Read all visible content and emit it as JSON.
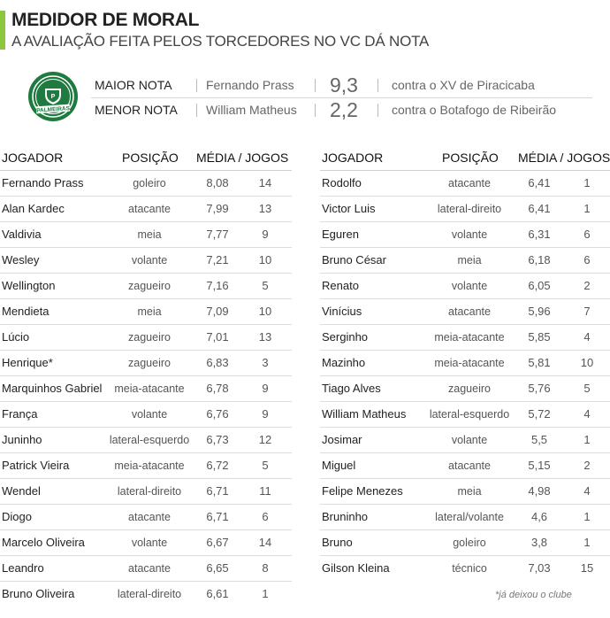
{
  "header": {
    "title": "MEDIDOR DE MORAL",
    "subtitle": "A AVALIAÇÃO FEITA PELOS TORCEDORES NO VC DÁ NOTA",
    "accent_color": "#8cc63f"
  },
  "logo": {
    "icon": "palmeiras-crest-icon",
    "text": "PALMEIRAS",
    "color": "#1f7a3f"
  },
  "summary": {
    "highest": {
      "label": "MAIOR NOTA",
      "player": "Fernando Prass",
      "score": "9,3",
      "opponent": "contra o XV de Piracicaba"
    },
    "lowest": {
      "label": "MENOR NOTA",
      "player": "William Matheus",
      "score": "2,2",
      "opponent": "contra o Botafogo de Ribeirão"
    }
  },
  "table_headers": {
    "player": "JOGADOR",
    "position": "POSIÇÃO",
    "avg_games": "MÉDIA / JOGOS"
  },
  "left_rows": [
    {
      "player": "Fernando Prass",
      "position": "goleiro",
      "avg": "8,08",
      "games": "14"
    },
    {
      "player": "Alan Kardec",
      "position": "atacante",
      "avg": "7,99",
      "games": "13"
    },
    {
      "player": "Valdivia",
      "position": "meia",
      "avg": "7,77",
      "games": "9"
    },
    {
      "player": "Wesley",
      "position": "volante",
      "avg": "7,21",
      "games": "10"
    },
    {
      "player": "Wellington",
      "position": "zagueiro",
      "avg": "7,16",
      "games": "5"
    },
    {
      "player": "Mendieta",
      "position": "meia",
      "avg": "7,09",
      "games": "10"
    },
    {
      "player": "Lúcio",
      "position": "zagueiro",
      "avg": "7,01",
      "games": "13"
    },
    {
      "player": "Henrique*",
      "position": "zagueiro",
      "avg": "6,83",
      "games": "3"
    },
    {
      "player": "Marquinhos Gabriel",
      "position": "meia-atacante",
      "avg": "6,78",
      "games": "9"
    },
    {
      "player": "França",
      "position": "volante",
      "avg": "6,76",
      "games": "9"
    },
    {
      "player": "Juninho",
      "position": "lateral-esquerdo",
      "avg": "6,73",
      "games": "12"
    },
    {
      "player": "Patrick Vieira",
      "position": "meia-atacante",
      "avg": "6,72",
      "games": "5"
    },
    {
      "player": "Wendel",
      "position": "lateral-direito",
      "avg": "6,71",
      "games": "11"
    },
    {
      "player": "Diogo",
      "position": "atacante",
      "avg": "6,71",
      "games": "6"
    },
    {
      "player": "Marcelo Oliveira",
      "position": "volante",
      "avg": "6,67",
      "games": "14"
    },
    {
      "player": "Leandro",
      "position": "atacante",
      "avg": "6,65",
      "games": "8"
    },
    {
      "player": "Bruno Oliveira",
      "position": "lateral-direito",
      "avg": "6,61",
      "games": "1"
    }
  ],
  "right_rows": [
    {
      "player": "Rodolfo",
      "position": "atacante",
      "avg": "6,41",
      "games": "1"
    },
    {
      "player": "Victor Luis",
      "position": "lateral-direito",
      "avg": "6,41",
      "games": "1"
    },
    {
      "player": "Eguren",
      "position": "volante",
      "avg": "6,31",
      "games": "6"
    },
    {
      "player": "Bruno César",
      "position": "meia",
      "avg": "6,18",
      "games": "6"
    },
    {
      "player": "Renato",
      "position": "volante",
      "avg": "6,05",
      "games": "2"
    },
    {
      "player": "Vinícius",
      "position": "atacante",
      "avg": "5,96",
      "games": "7"
    },
    {
      "player": "Serginho",
      "position": "meia-atacante",
      "avg": "5,85",
      "games": "4"
    },
    {
      "player": "Mazinho",
      "position": "meia-atacante",
      "avg": "5,81",
      "games": "10"
    },
    {
      "player": "Tiago Alves",
      "position": "zagueiro",
      "avg": "5,76",
      "games": "5"
    },
    {
      "player": "William Matheus",
      "position": "lateral-esquerdo",
      "avg": "5,72",
      "games": "4"
    },
    {
      "player": "Josimar",
      "position": "volante",
      "avg": "5,5",
      "games": "1"
    },
    {
      "player": "Miguel",
      "position": "atacante",
      "avg": "5,15",
      "games": "2"
    },
    {
      "player": "Felipe Menezes",
      "position": "meia",
      "avg": "4,98",
      "games": "4"
    },
    {
      "player": "Bruninho",
      "position": "lateral/volante",
      "avg": "4,6",
      "games": "1"
    },
    {
      "player": "Bruno",
      "position": "goleiro",
      "avg": "3,8",
      "games": "1"
    },
    {
      "player": "Gilson Kleina",
      "position": "técnico",
      "avg": "7,03",
      "games": "15"
    }
  ],
  "footnote": "*já deixou o clube"
}
